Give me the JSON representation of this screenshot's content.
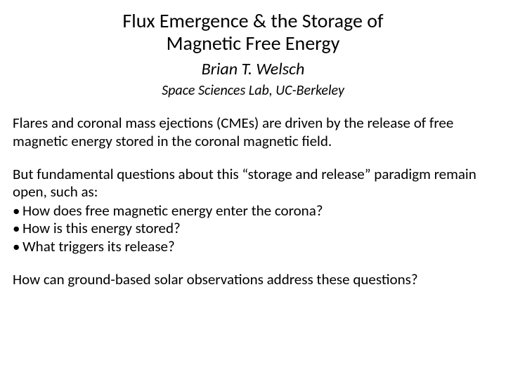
{
  "title_line1": "Flux Emergence & the Storage of",
  "title_line2": "Magnetic Free Energy",
  "author": "Brian T. Welsch",
  "affiliation": "Space Sciences Lab, UC-Berkeley",
  "para1": "Flares and coronal mass ejections (CMEs) are driven by the release of free magnetic energy stored in the coronal magnetic field.",
  "para2": "But fundamental questions about this “storage and release” paradigm remain open, such as:",
  "bullets": {
    "b1": "How does free magnetic energy enter the corona?",
    "b2": "How is this energy  stored?",
    "b3": "What triggers its release?"
  },
  "para3": "How can ground-based solar observations address these questions?",
  "colors": {
    "text": "#000000",
    "background": "#ffffff"
  },
  "fonts": {
    "family": "Calibri",
    "title_size_pt": 28,
    "author_size_pt": 24,
    "affil_size_pt": 20,
    "body_size_pt": 21
  }
}
